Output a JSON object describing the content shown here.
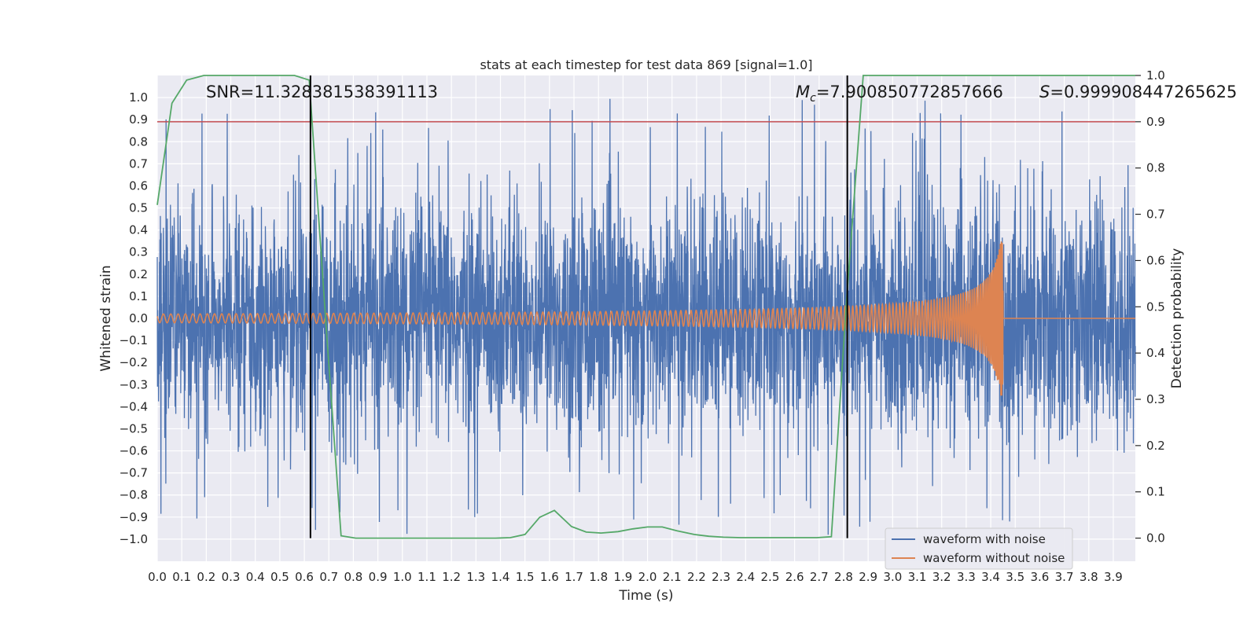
{
  "chart_data": {
    "type": "line",
    "title": "stats at each timestep for test data 869 [signal=1.0]",
    "xlabel": "Time (s)",
    "ylabel": "Whitened strain",
    "y2label": "Detection probability",
    "xlim": [
      0.0,
      3.99
    ],
    "ylim": [
      -1.1,
      1.1
    ],
    "y2lim": [
      -0.05,
      1.0
    ],
    "grid": true,
    "x_ticks": [
      "0.0",
      "0.1",
      "0.2",
      "0.3",
      "0.4",
      "0.5",
      "0.6",
      "0.7",
      "0.8",
      "0.9",
      "1.0",
      "1.1",
      "1.2",
      "1.3",
      "1.4",
      "1.5",
      "1.6",
      "1.7",
      "1.8",
      "1.9",
      "2.0",
      "2.1",
      "2.2",
      "2.3",
      "2.4",
      "2.5",
      "2.6",
      "2.7",
      "2.8",
      "2.9",
      "3.0",
      "3.1",
      "3.2",
      "3.3",
      "3.4",
      "3.5",
      "3.6",
      "3.7",
      "3.8",
      "3.9"
    ],
    "y_ticks": [
      "1.0",
      "0.9",
      "0.8",
      "0.7",
      "0.6",
      "0.5",
      "0.4",
      "0.3",
      "0.2",
      "0.1",
      "0.0",
      "−0.1",
      "−0.2",
      "−0.3",
      "−0.4",
      "−0.5",
      "−0.6",
      "−0.7",
      "−0.8",
      "−0.9",
      "−1.0"
    ],
    "y2_ticks": [
      "1.0",
      "0.9",
      "0.8",
      "0.7",
      "0.6",
      "0.5",
      "0.4",
      "0.3",
      "0.2",
      "0.1",
      "0.0"
    ],
    "annotations": {
      "snr": "SNR=11.328381538391113",
      "mc_symbol": "M",
      "mc_sub": "c",
      "mc_value": "=7.900850772857666",
      "s_symbol": "S",
      "s_value": "=0.999908447265625"
    },
    "threshold": {
      "y2": 0.9,
      "color": "#c44e52"
    },
    "vertical_markers": [
      0.625,
      2.815
    ],
    "series": [
      {
        "name": "waveform with noise",
        "axis": "left",
        "color": "#4c72b0",
        "kind": "noise",
        "amplitude_range": [
          -1.0,
          1.0
        ]
      },
      {
        "name": "waveform without noise",
        "axis": "left",
        "color": "#dd8452",
        "kind": "chirp",
        "start_amplitude": 0.02,
        "peak_amplitude": 0.35,
        "merger_time": 3.45
      },
      {
        "name": "detection probability",
        "axis": "right",
        "color": "#55a868",
        "legend": false,
        "x": [
          0.0,
          0.06,
          0.12,
          0.19,
          0.25,
          0.31,
          0.38,
          0.44,
          0.5,
          0.56,
          0.62,
          0.69,
          0.75,
          0.81,
          0.88,
          0.94,
          1.0,
          1.06,
          1.12,
          1.19,
          1.25,
          1.31,
          1.38,
          1.44,
          1.5,
          1.56,
          1.62,
          1.69,
          1.75,
          1.81,
          1.88,
          1.94,
          2.0,
          2.06,
          2.12,
          2.19,
          2.25,
          2.31,
          2.38,
          2.44,
          2.5,
          2.56,
          2.62,
          2.69,
          2.75,
          2.81,
          2.88,
          2.94,
          3.0,
          3.5,
          3.99
        ],
        "y": [
          0.72,
          0.94,
          0.99,
          1.0,
          1.0,
          1.0,
          1.0,
          1.0,
          1.0,
          1.0,
          0.99,
          0.45,
          0.005,
          0.0,
          0.0,
          0.0,
          0.0,
          0.0,
          0.0,
          0.0,
          0.0,
          0.0,
          0.0,
          0.001,
          0.008,
          0.045,
          0.06,
          0.025,
          0.013,
          0.011,
          0.014,
          0.02,
          0.024,
          0.024,
          0.016,
          0.008,
          0.004,
          0.002,
          0.001,
          0.001,
          0.001,
          0.001,
          0.001,
          0.001,
          0.003,
          0.5,
          1.0,
          1.0,
          1.0,
          1.0,
          1.0
        ]
      }
    ],
    "legend": {
      "position": "lower-right",
      "entries": [
        {
          "label": "waveform with noise",
          "color": "#4c72b0"
        },
        {
          "label": "waveform without noise",
          "color": "#dd8452"
        }
      ]
    }
  }
}
